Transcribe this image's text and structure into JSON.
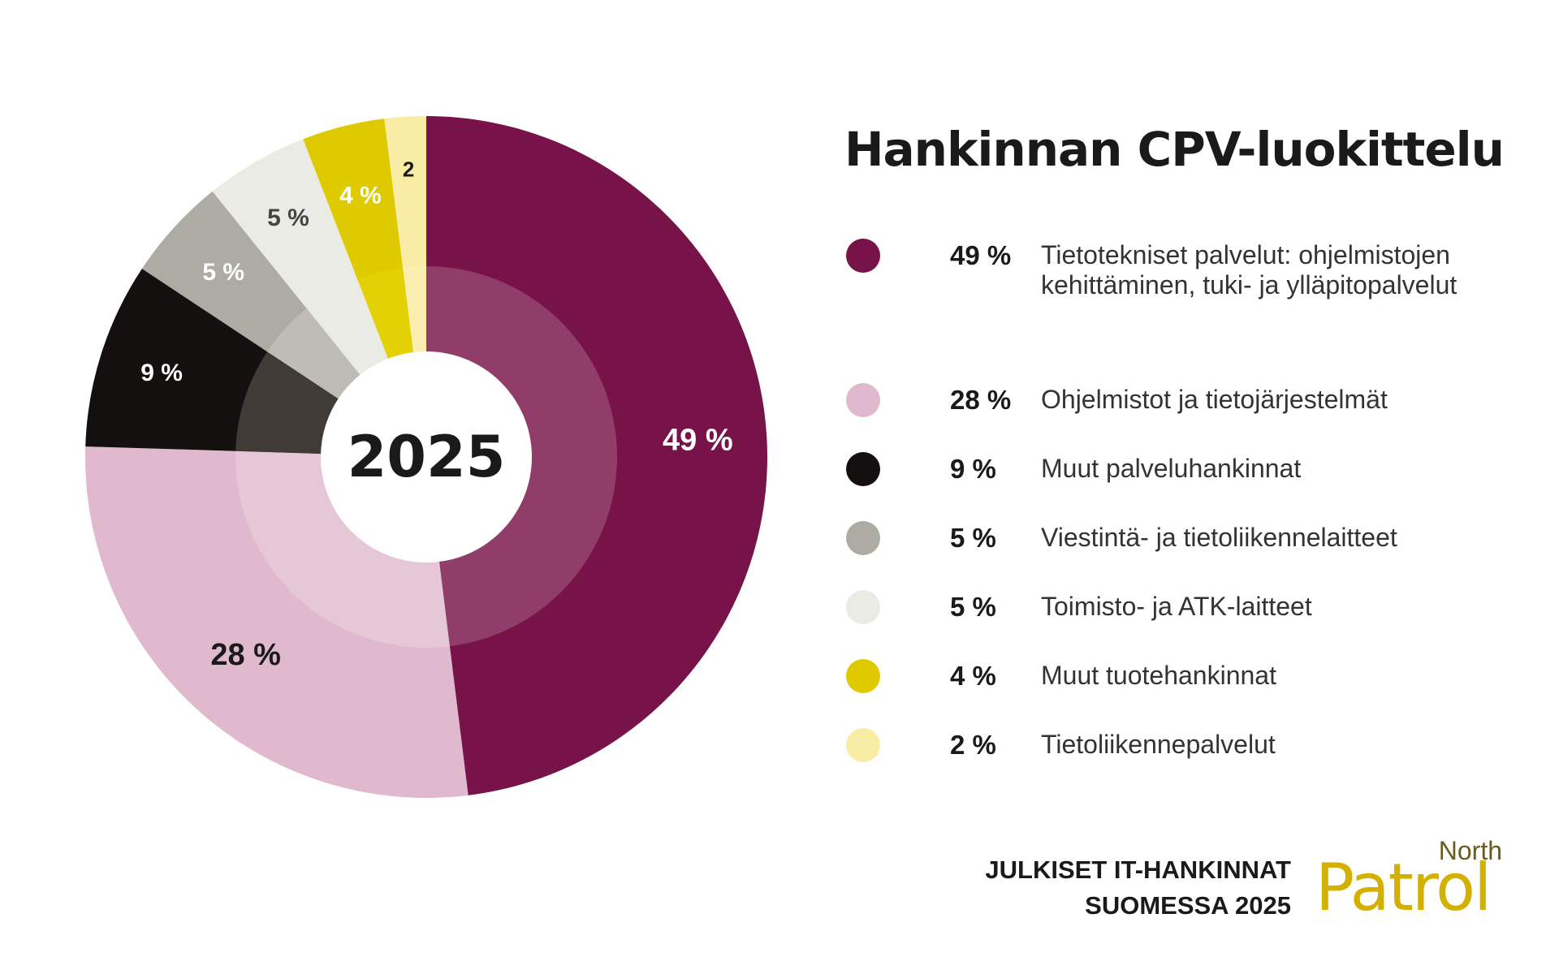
{
  "chart_data": {
    "type": "pie",
    "title": "Hankinnan CPV-luokittelu",
    "center_label": "2025",
    "slices": [
      {
        "name": "Tietotekniset palvelut: ohjelmistojen kehittäminen, tuki- ja ylläpitopalvelut",
        "value": 49,
        "label": "49 %",
        "color": "#771349",
        "inner_color": "#913d69",
        "label_color": "#ffffff"
      },
      {
        "name": "Ohjelmistot ja tietojärjestelmät",
        "value": 28,
        "label": "28 %",
        "color": "#e0b9cf",
        "inner_color": "#e6c7d8",
        "label_color": "#1a1a1a"
      },
      {
        "name": "Muut palveluhankinnat",
        "value": 9,
        "label": "9 %",
        "color": "#141010",
        "inner_color": "#403b37",
        "label_color": "#ffffff"
      },
      {
        "name": "Viestintä- ja tietoliikennelaitteet",
        "value": 5,
        "label": "5 %",
        "color": "#adaca4",
        "inner_color": "#bdbcb5",
        "label_color": "#ffffff"
      },
      {
        "name": "Toimisto- ja ATK-laitteet",
        "value": 5,
        "label": "5 %",
        "color": "#ebebe6",
        "inner_color": "#ebebe6",
        "label_color": "#444444"
      },
      {
        "name": "Muut tuotehankinnat",
        "value": 4,
        "label": "4 %",
        "color": "#dfca00",
        "inner_color": "#e3d005",
        "label_color": "#ffffff"
      },
      {
        "name": "Tietoliikennepalvelut",
        "value": 2,
        "label": "2",
        "color": "#f9eda6",
        "inner_color": "#faefb1",
        "label_color": "#1a1a1a"
      }
    ]
  },
  "legend": [
    {
      "pct": "49 %",
      "text": "Tietotekniset palvelut: ohjelmistojen kehittäminen, tuki- ja ylläpitopalvelut",
      "color": "#771349"
    },
    {
      "pct": "28 %",
      "text": "Ohjelmistot ja tietojärjestelmät",
      "color": "#e0b9cf"
    },
    {
      "pct": "9 %",
      "text": "Muut palveluhankinnat",
      "color": "#141010"
    },
    {
      "pct": "5 %",
      "text": "Viestintä- ja tietoliikennelaitteet",
      "color": "#adaca4"
    },
    {
      "pct": "5 %",
      "text": "Toimisto- ja ATK-laitteet",
      "color": "#ebebe6"
    },
    {
      "pct": "4 %",
      "text": "Muut tuotehankinnat",
      "color": "#dfca00"
    },
    {
      "pct": "2 %",
      "text": "Tietoliikennepalvelut",
      "color": "#f9eda6"
    }
  ],
  "footer": {
    "line1": "JULKISET IT-HANKINNAT",
    "line2": "SUOMESSA 2025"
  },
  "logo": {
    "small": "North",
    "big": "Patrol"
  }
}
